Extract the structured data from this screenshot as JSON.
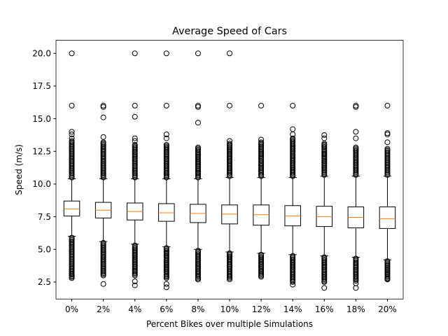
{
  "chart_data": {
    "type": "box",
    "title": "Average Speed of Cars",
    "xlabel": "Percent Bikes over multiple Simulations",
    "ylabel": "Speed (m/s)",
    "ylim": [
      1.2,
      21.0
    ],
    "yticks": [
      "2.5",
      "5.0",
      "7.5",
      "10.0",
      "12.5",
      "15.0",
      "17.5",
      "20.0"
    ],
    "grid": false,
    "colors": {
      "median": "#ff7f0e",
      "box": "#000000",
      "flier": "#000000"
    },
    "categories": [
      "0%",
      "2%",
      "4%",
      "6%",
      "8%",
      "10%",
      "12%",
      "14%",
      "16%",
      "18%",
      "20%"
    ],
    "boxes": [
      {
        "category": "0%",
        "whislo": 6.0,
        "q1": 7.55,
        "med": 8.1,
        "q3": 8.7,
        "whishi": 10.4,
        "fliers_low_range": [
          2.8,
          5.9
        ],
        "fliers_high_range": [
          10.5,
          13.3
        ],
        "fliers_isolated": [
          2.9,
          3.1,
          13.5,
          13.8,
          14.0,
          16.0,
          20.0
        ]
      },
      {
        "category": "2%",
        "whislo": 5.6,
        "q1": 7.4,
        "med": 8.0,
        "q3": 8.6,
        "whishi": 10.4,
        "fliers_low_range": [
          3.0,
          5.5
        ],
        "fliers_high_range": [
          10.5,
          13.2
        ],
        "fliers_isolated": [
          2.35,
          13.6,
          15.1,
          15.9,
          16.0
        ]
      },
      {
        "category": "4%",
        "whislo": 5.4,
        "q1": 7.25,
        "med": 7.9,
        "q3": 8.55,
        "whishi": 10.4,
        "fliers_low_range": [
          3.0,
          5.3
        ],
        "fliers_high_range": [
          10.5,
          13.0
        ],
        "fliers_isolated": [
          2.25,
          2.55,
          13.3,
          13.5,
          15.15,
          16.0,
          20.0
        ]
      },
      {
        "category": "6%",
        "whislo": 5.2,
        "q1": 7.15,
        "med": 7.8,
        "q3": 8.5,
        "whishi": 10.4,
        "fliers_low_range": [
          2.8,
          5.1
        ],
        "fliers_high_range": [
          10.5,
          13.0
        ],
        "fliers_isolated": [
          2.1,
          2.35,
          13.5,
          13.8,
          16.0,
          20.0
        ]
      },
      {
        "category": "8%",
        "whislo": 5.0,
        "q1": 7.05,
        "med": 7.75,
        "q3": 8.45,
        "whishi": 10.4,
        "fliers_low_range": [
          2.7,
          4.9
        ],
        "fliers_high_range": [
          10.5,
          12.8
        ],
        "fliers_isolated": [
          2.7,
          14.7,
          15.9,
          16.0,
          20.0
        ]
      },
      {
        "category": "10%",
        "whislo": 4.8,
        "q1": 6.95,
        "med": 7.7,
        "q3": 8.4,
        "whishi": 10.5,
        "fliers_low_range": [
          2.8,
          4.7
        ],
        "fliers_high_range": [
          10.6,
          13.1
        ],
        "fliers_isolated": [
          2.7,
          13.3,
          16.0,
          20.0
        ]
      },
      {
        "category": "12%",
        "whislo": 4.7,
        "q1": 6.85,
        "med": 7.65,
        "q3": 8.4,
        "whishi": 10.5,
        "fliers_low_range": [
          2.9,
          4.6
        ],
        "fliers_high_range": [
          10.6,
          13.2
        ],
        "fliers_isolated": [
          13.4,
          16.0
        ]
      },
      {
        "category": "14%",
        "whislo": 4.6,
        "q1": 6.8,
        "med": 7.55,
        "q3": 8.35,
        "whishi": 10.5,
        "fliers_low_range": [
          2.5,
          4.5
        ],
        "fliers_high_range": [
          10.6,
          13.5
        ],
        "fliers_isolated": [
          2.3,
          13.8,
          14.2,
          16.0
        ]
      },
      {
        "category": "16%",
        "whislo": 4.5,
        "q1": 6.75,
        "med": 7.5,
        "q3": 8.3,
        "whishi": 10.6,
        "fliers_low_range": [
          2.5,
          4.4
        ],
        "fliers_high_range": [
          10.7,
          13.1
        ],
        "fliers_isolated": [
          2.05,
          13.5,
          13.75
        ]
      },
      {
        "category": "18%",
        "whislo": 4.4,
        "q1": 6.65,
        "med": 7.45,
        "q3": 8.25,
        "whishi": 10.6,
        "fliers_low_range": [
          2.6,
          4.3
        ],
        "fliers_high_range": [
          10.7,
          12.8
        ],
        "fliers_isolated": [
          2.05,
          2.4,
          13.5,
          14.0,
          15.9,
          16.0
        ]
      },
      {
        "category": "20%",
        "whislo": 4.2,
        "q1": 6.6,
        "med": 7.35,
        "q3": 8.25,
        "whishi": 10.6,
        "fliers_low_range": [
          2.7,
          4.1
        ],
        "fliers_high_range": [
          10.7,
          12.7
        ],
        "fliers_isolated": [
          2.75,
          13.2,
          13.8,
          13.9,
          16.0
        ]
      }
    ]
  }
}
